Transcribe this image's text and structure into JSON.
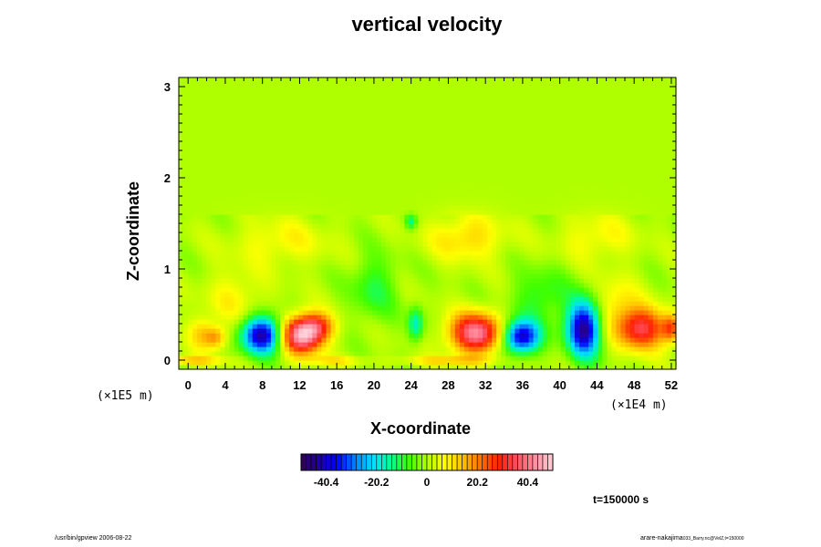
{
  "chart_data": {
    "type": "heatmap",
    "title": "vertical velocity",
    "xlabel": "X-coordinate",
    "ylabel": "Z-coordinate",
    "x_scale_label": "(×1E4 m)",
    "z_scale_label": "(×1E5 m)",
    "xlim": [
      -1,
      52.5
    ],
    "ylim": [
      -0.1,
      3.1
    ],
    "x_ticks": [
      0,
      4,
      8,
      12,
      16,
      20,
      24,
      28,
      32,
      36,
      40,
      44,
      48,
      52
    ],
    "y_ticks": [
      0,
      1,
      2,
      3
    ],
    "background_value": 0,
    "anomalies": [
      {
        "x": 1.5,
        "z": 0.3,
        "value": 12,
        "rx": 1.5,
        "rz": 0.18
      },
      {
        "x": 3.0,
        "z": 0.25,
        "value": 16,
        "rx": 1.2,
        "rz": 0.12
      },
      {
        "x": 8.0,
        "z": 0.28,
        "value": -44,
        "rx": 2.2,
        "rz": 0.2
      },
      {
        "x": 12.2,
        "z": 0.28,
        "value": 48,
        "rx": 2.2,
        "rz": 0.2
      },
      {
        "x": 14.0,
        "z": 0.38,
        "value": 20,
        "rx": 1.8,
        "rz": 0.15
      },
      {
        "x": 5.0,
        "z": 0.7,
        "value": 8,
        "rx": 3.0,
        "rz": 0.3
      },
      {
        "x": 24.5,
        "z": 0.4,
        "value": -18,
        "rx": 0.8,
        "rz": 0.18
      },
      {
        "x": 31.0,
        "z": 0.3,
        "value": 42,
        "rx": 2.8,
        "rz": 0.22
      },
      {
        "x": 35.8,
        "z": 0.26,
        "value": -42,
        "rx": 2.0,
        "rz": 0.18
      },
      {
        "x": 42.6,
        "z": 0.35,
        "value": -46,
        "rx": 1.8,
        "rz": 0.3
      },
      {
        "x": 48.8,
        "z": 0.35,
        "value": 34,
        "rx": 2.6,
        "rz": 0.22
      },
      {
        "x": 46.0,
        "z": 0.6,
        "value": 10,
        "rx": 2.5,
        "rz": 0.3
      },
      {
        "x": 52.0,
        "z": 0.35,
        "value": 22,
        "rx": 1.0,
        "rz": 0.15
      },
      {
        "x": 20.0,
        "z": 0.8,
        "value": -10,
        "rx": 2.5,
        "rz": 0.35
      },
      {
        "x": 24.0,
        "z": 1.52,
        "value": -14,
        "rx": 0.6,
        "rz": 0.08
      },
      {
        "x": 30.0,
        "z": 1.35,
        "value": 12,
        "rx": 4.0,
        "rz": 0.25
      },
      {
        "x": 38.0,
        "z": 0.7,
        "value": -10,
        "rx": 3.0,
        "rz": 0.3
      },
      {
        "x": 10.0,
        "z": 1.3,
        "value": 8,
        "rx": 5.0,
        "rz": 0.25
      },
      {
        "x": 44.0,
        "z": 1.35,
        "value": 8,
        "rx": 4.0,
        "rz": 0.25
      },
      {
        "x": 0.0,
        "z": 0.0,
        "value": 14,
        "rx": 4.0,
        "rz": 0.05
      },
      {
        "x": 16.0,
        "z": 0.0,
        "value": 10,
        "rx": 3.0,
        "rz": 0.05
      },
      {
        "x": 28.0,
        "z": 0.0,
        "value": 12,
        "rx": 5.0,
        "rz": 0.05
      }
    ],
    "colorbar": {
      "min": -50.5,
      "max": 50.5,
      "ticks": [
        -40.4,
        -20.2,
        0,
        20.2,
        40.4
      ],
      "tick_labels": [
        "-40.4",
        "-20.2",
        "0",
        "20.2",
        "40.4"
      ],
      "n_bins": 50,
      "colors": [
        "#300050",
        "#2000a0",
        "#0000ff",
        "#0080ff",
        "#00e0ff",
        "#00ff90",
        "#40ff00",
        "#b0ff00",
        "#ffff00",
        "#ffc000",
        "#ff7000",
        "#ff2000",
        "#ff5060",
        "#ff90a0",
        "#ffd0d8"
      ]
    }
  },
  "time_label": "t=150000 s",
  "footer_left": "/usr/bin/gpview 2006-08-22",
  "footer_right": "arare-nakajima",
  "footer_right_sub": "033_Barry.nc@VelZ,t=150000"
}
